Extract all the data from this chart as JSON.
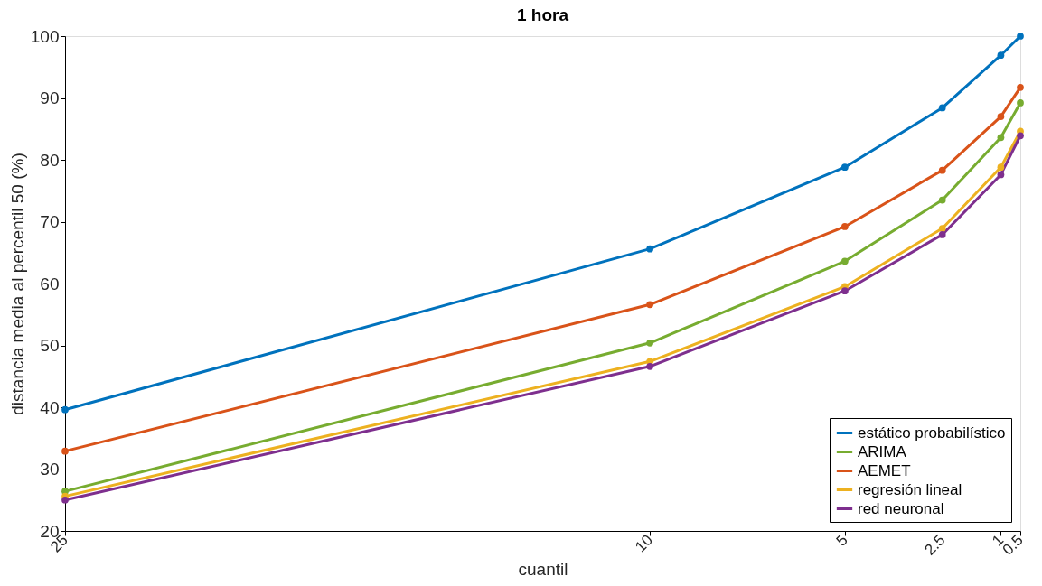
{
  "chart_data": {
    "type": "line",
    "title": "1 hora",
    "xlabel": "cuantil",
    "ylabel": "distancia media al percentil 50 (%)",
    "x": [
      25,
      10,
      5,
      2.5,
      1,
      0.5
    ],
    "xlim": [
      25,
      0.5
    ],
    "xticks": [
      25,
      10,
      5,
      2.5,
      1,
      0.5
    ],
    "ylim": [
      20,
      100
    ],
    "yticks": [
      20,
      30,
      40,
      50,
      60,
      70,
      80,
      90,
      100
    ],
    "series": [
      {
        "name": "estático probabilístico",
        "color": "#0072bd",
        "values": [
          39.6,
          65.6,
          78.8,
          88.4,
          96.9,
          100
        ]
      },
      {
        "name": "ARIMA",
        "color": "#77ac30",
        "values": [
          26.4,
          50.4,
          63.6,
          73.5,
          83.6,
          89.2
        ]
      },
      {
        "name": "AEMET",
        "color": "#d95319",
        "values": [
          32.9,
          56.6,
          69.2,
          78.3,
          87.0,
          91.7
        ]
      },
      {
        "name": "regresión lineal",
        "color": "#edb120",
        "values": [
          25.6,
          47.4,
          59.5,
          68.9,
          78.8,
          84.6
        ]
      },
      {
        "name": "red neuronal",
        "color": "#7e2f8e",
        "values": [
          25.0,
          46.6,
          58.8,
          67.9,
          77.6,
          83.9
        ]
      }
    ],
    "legend": "bottom right",
    "grid": false,
    "marker": "circle",
    "line_style": "solid"
  }
}
